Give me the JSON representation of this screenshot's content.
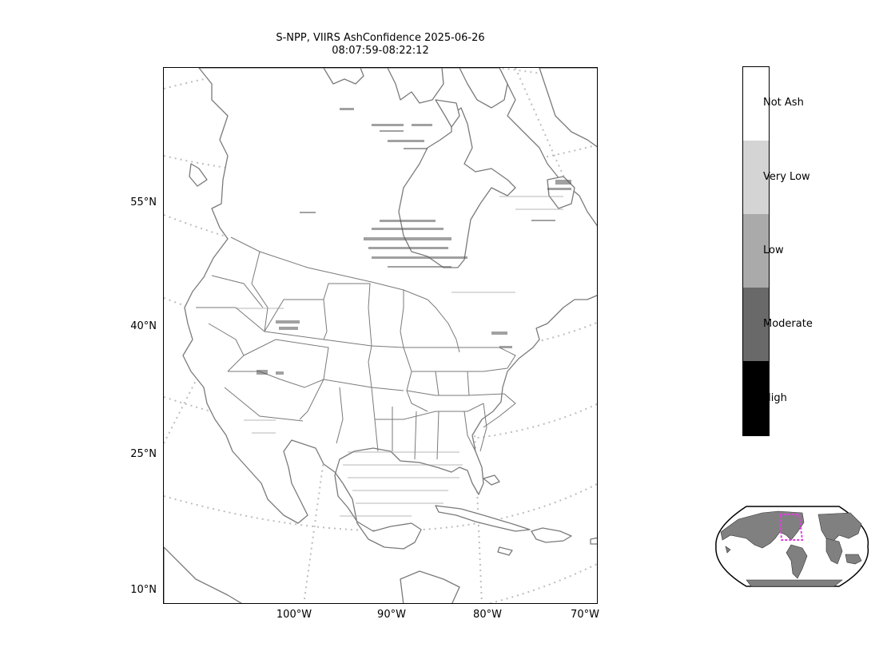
{
  "title_line1": "S-NPP, VIIRS AshConfidence 2025-06-26",
  "title_line2": "08:07:59-08:22:12",
  "lat_labels": [
    "55°N",
    "40°N",
    "25°N",
    "10°N"
  ],
  "lon_labels": [
    "100°W",
    "90°W",
    "80°W",
    "70°W"
  ],
  "colorbar": {
    "levels": [
      {
        "label": "Not Ash",
        "color": "#ffffff"
      },
      {
        "label": "Very Low",
        "color": "#d4d4d4"
      },
      {
        "label": "Low",
        "color": "#aaaaaa"
      },
      {
        "label": "Moderate",
        "color": "#696969"
      },
      {
        "label": "High",
        "color": "#000000"
      }
    ]
  },
  "colors": {
    "coastline": "#7a7a7a",
    "graticule": "#bdbdbd",
    "inset_land": "#808080",
    "inset_box": "#e040e0"
  }
}
